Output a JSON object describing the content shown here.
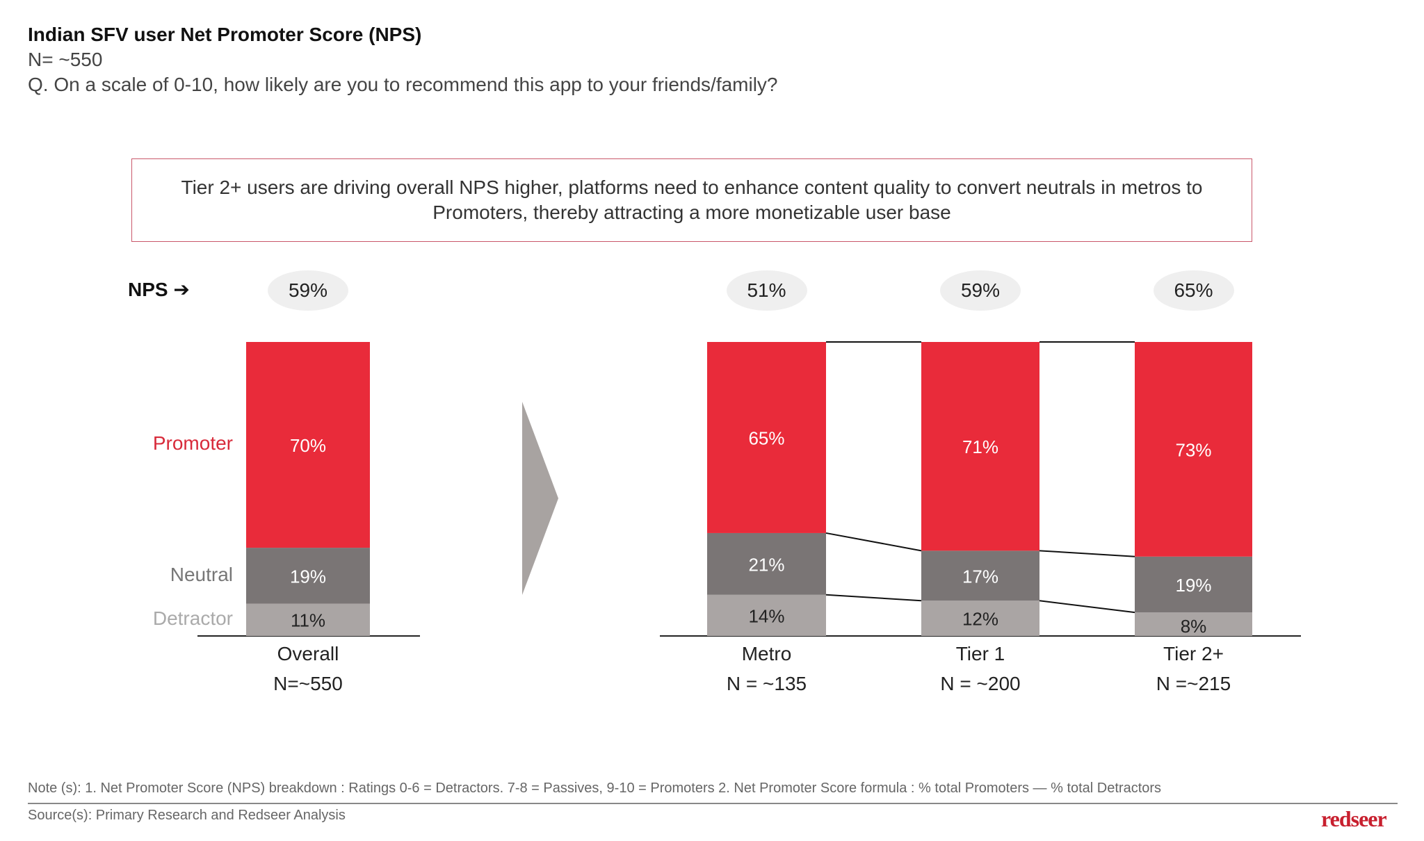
{
  "header": {
    "title": "Indian SFV user Net Promoter Score (NPS)",
    "sample": "N= ~550",
    "question": "Q. On a scale of 0-10, how likely are you to recommend this app to your friends/family?"
  },
  "callout": "Tier 2+ users are driving overall NPS higher, platforms need to enhance content quality to convert neutrals in metros to Promoters, thereby attracting a more monetizable user base",
  "nps_label": "NPS",
  "nps_arrow_icon": "arrow-right-icon",
  "footer": {
    "note": "Note (s): 1. Net Promoter Score (NPS) breakdown : Ratings 0-6 = Detractors. 7-8 = Passives, 9-10 = Promoters  2. Net Promoter Score formula : % total Promoters — % total Detractors",
    "source": "Source(s): Primary Research and Redseer Analysis",
    "logo": "redseer"
  },
  "colors": {
    "promoter": "#e92b3a",
    "neutral": "#7a7575",
    "detractor": "#aaa5a4",
    "arrow": "#a8a3a1",
    "nps_oval": "#efefef",
    "promoter_label": "#d82a3a",
    "neutral_label": "#777",
    "detractor_label": "#aaa"
  },
  "chart_data": {
    "type": "bar",
    "stacked": true,
    "unit": "%",
    "legend": [
      "Promoter",
      "Neutral",
      "Detractor"
    ],
    "groups": [
      {
        "category": "Overall",
        "n": "N=~550",
        "nps": "59%",
        "values": {
          "Promoter": 70,
          "Neutral": 19,
          "Detractor": 11
        }
      },
      {
        "category": "Metro",
        "n": "N = ~135",
        "nps": "51%",
        "values": {
          "Promoter": 65,
          "Neutral": 21,
          "Detractor": 14
        }
      },
      {
        "category": "Tier 1",
        "n": "N = ~200",
        "nps": "59%",
        "values": {
          "Promoter": 71,
          "Neutral": 17,
          "Detractor": 12
        }
      },
      {
        "category": "Tier 2+",
        "n": "N =~215",
        "nps": "65%",
        "values": {
          "Promoter": 73,
          "Neutral": 19,
          "Detractor": 8
        }
      }
    ]
  }
}
